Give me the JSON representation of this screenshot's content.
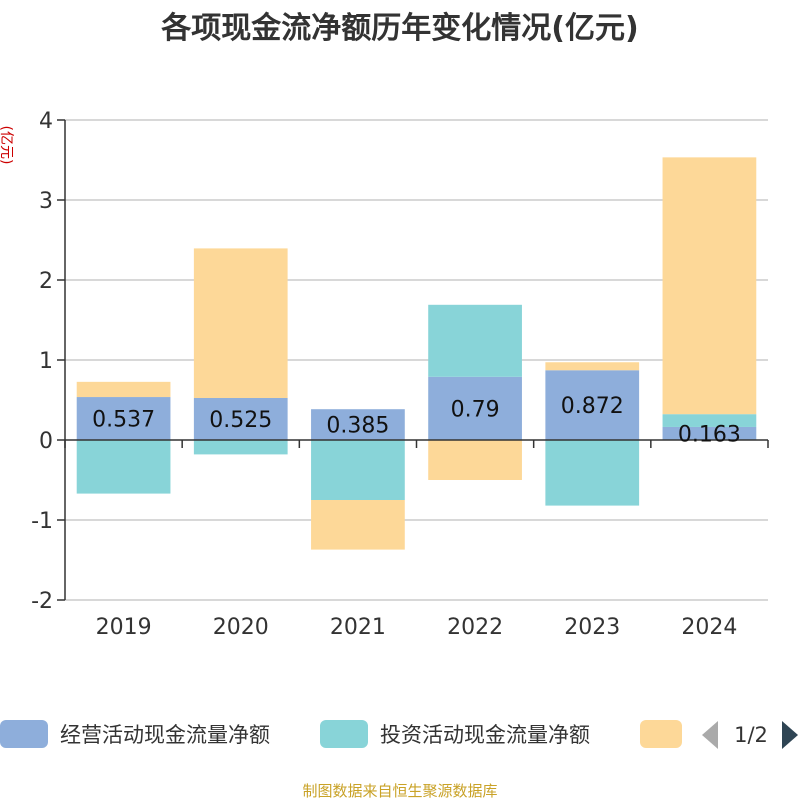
{
  "chart_data": {
    "type": "bar",
    "stacked": true,
    "title": "各项现金流净额历年变化情况(亿元)",
    "ylabel": "(亿元)",
    "xlabel": "",
    "categories": [
      "2019",
      "2020",
      "2021",
      "2022",
      "2023",
      "2024"
    ],
    "ylim": [
      -2,
      4
    ],
    "yticks": [
      4,
      3,
      2,
      1,
      0,
      -1,
      -2
    ],
    "grid": true,
    "legend_position": "bottom",
    "series": [
      {
        "name": "经营活动现金流量净额",
        "color": "#8eaedb",
        "values": [
          0.537,
          0.525,
          0.385,
          0.79,
          0.872,
          0.163
        ],
        "labels": [
          "0.537",
          "0.525",
          "0.385",
          "0.79",
          "0.872",
          "0.163"
        ]
      },
      {
        "name": "投资活动现金流量净额",
        "color": "#88d4d8",
        "values": [
          -0.67,
          -0.18,
          -0.75,
          0.9,
          -0.82,
          0.16
        ]
      },
      {
        "name": "",
        "color": "#fdd898",
        "values": [
          0.19,
          1.87,
          -0.62,
          -0.5,
          0.1,
          3.21
        ]
      }
    ]
  },
  "legend": {
    "page": "1/2"
  },
  "source": "制图数据来自恒生聚源数据库"
}
